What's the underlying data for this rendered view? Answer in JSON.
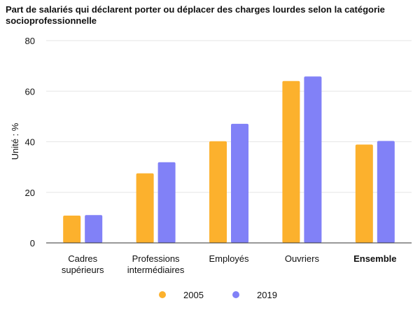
{
  "chart_data": {
    "type": "bar",
    "title": "Part de salariés qui déclarent porter ou déplacer des charges lourdes selon la catégorie socioprofessionnelle",
    "ylabel": "Unité : %",
    "xlabel": "",
    "ylim": [
      0,
      80
    ],
    "yticks": [
      0,
      20,
      40,
      60,
      80
    ],
    "grid": true,
    "legend_position": "bottom",
    "categories": [
      [
        "Cadres",
        "supérieurs"
      ],
      [
        "Professions",
        "intermédiaires"
      ],
      [
        "Employés"
      ],
      [
        "Ouvriers"
      ],
      [
        "Ensemble"
      ]
    ],
    "bold_categories": [
      4
    ],
    "series": [
      {
        "name": "2005",
        "color": "#fcb12d",
        "values": [
          10.8,
          27.5,
          40.2,
          64.0,
          38.9
        ]
      },
      {
        "name": "2019",
        "color": "#8181f7",
        "values": [
          11.0,
          31.9,
          47.1,
          65.8,
          40.3
        ]
      }
    ]
  }
}
